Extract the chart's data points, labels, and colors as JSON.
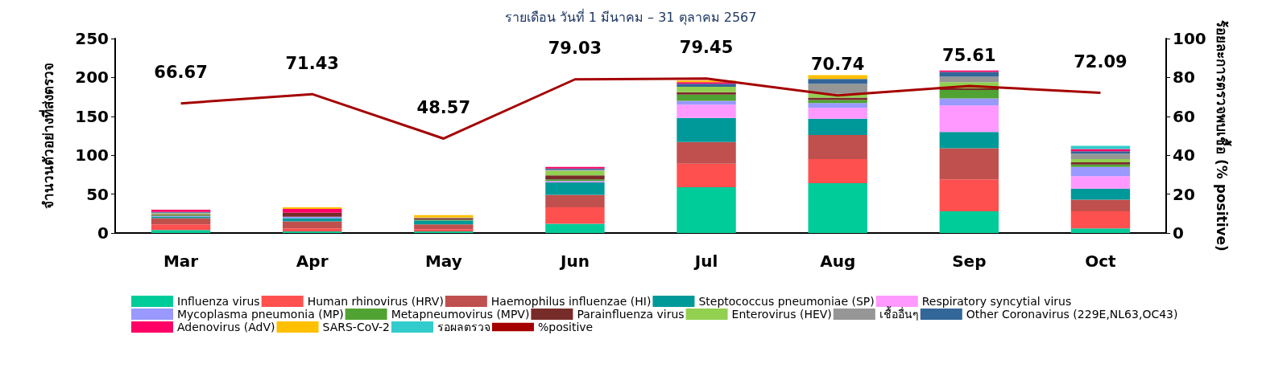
{
  "chart_data": {
    "type": "bar",
    "title": "รายเดือน วันที่ 1 มีนาคม – 31 ตุลาคม 2567",
    "ylabel": "จำนวนตัวอย่างที่ส่งตรวจ",
    "y2label": "ร้อยละการตรวจพบเชื้อ (% positive)",
    "categories": [
      "Mar",
      "Apr",
      "May",
      "Jun",
      "Jul",
      "Aug",
      "Sep",
      "Oct"
    ],
    "stacked": true,
    "ylim": [
      0,
      250
    ],
    "yticks": [
      0,
      50,
      100,
      150,
      200,
      250
    ],
    "y2lim": [
      0,
      100
    ],
    "y2ticks": [
      0,
      20,
      40,
      60,
      80,
      100
    ],
    "grid": false,
    "legend": "bottom",
    "series": [
      {
        "name": "Influenza virus",
        "color": "#00cc99",
        "values": [
          4,
          2,
          2,
          12,
          59,
          64,
          28,
          6
        ]
      },
      {
        "name": "Human rhinovirus (HRV)",
        "color": "#ff5050",
        "values": [
          7,
          4,
          3,
          21,
          30,
          31,
          41,
          22
        ]
      },
      {
        "name": "Haemophilus influenzae (HI)",
        "color": "#c0504d",
        "values": [
          8,
          9,
          6,
          16,
          28,
          31,
          40,
          15
        ]
      },
      {
        "name": "Steptococcus pneumoniae (SP)",
        "color": "#009999",
        "values": [
          2,
          4,
          5,
          16,
          31,
          21,
          21,
          14
        ]
      },
      {
        "name": "Respiratory syncytial virus",
        "color": "#ff99ff",
        "values": [
          0,
          0,
          0,
          1,
          17,
          14,
          34,
          16
        ]
      },
      {
        "name": "Mycoplasma pneumonia (MP)",
        "color": "#9999ff",
        "values": [
          1,
          2,
          0,
          1,
          5,
          6,
          9,
          12
        ]
      },
      {
        "name": "Metapneumovirus (MPV)",
        "color": "#50a332",
        "values": [
          1,
          0,
          1,
          2,
          8,
          4,
          11,
          3
        ]
      },
      {
        "name": "Parainfluenza virus",
        "color": "#772c2a",
        "values": [
          1,
          5,
          2,
          5,
          3,
          3,
          2,
          3
        ]
      },
      {
        "name": "Enterovirus (HEV)",
        "color": "#92d050",
        "values": [
          1,
          0,
          0,
          6,
          7,
          5,
          8,
          4
        ]
      },
      {
        "name": "เชื้ออื่นๆ",
        "color": "#969696",
        "values": [
          1,
          0,
          1,
          1,
          0,
          13,
          7,
          7
        ]
      },
      {
        "name": "Other Coronavirus (229E,NL63,OC43)",
        "color": "#336699",
        "values": [
          1,
          0,
          0,
          2,
          4,
          6,
          6,
          3
        ]
      },
      {
        "name": "Adenovirus (AdV)",
        "color": "#ff0066",
        "values": [
          3,
          5,
          0,
          2,
          2,
          0,
          2,
          3
        ]
      },
      {
        "name": "SARS-CoV-2",
        "color": "#ffc000",
        "values": [
          0,
          2,
          3,
          0,
          2,
          5,
          0,
          0
        ]
      },
      {
        "name": "รอผลตรวจ",
        "color": "#33cccc",
        "values": [
          0,
          0,
          0,
          0,
          0,
          0,
          0,
          4
        ]
      },
      {
        "name": "%positive",
        "type": "line",
        "axis": "y2",
        "color": "#a50000",
        "data_labels": true,
        "values": [
          66.67,
          71.43,
          48.57,
          79.03,
          79.45,
          70.74,
          75.61,
          72.09
        ]
      }
    ]
  }
}
